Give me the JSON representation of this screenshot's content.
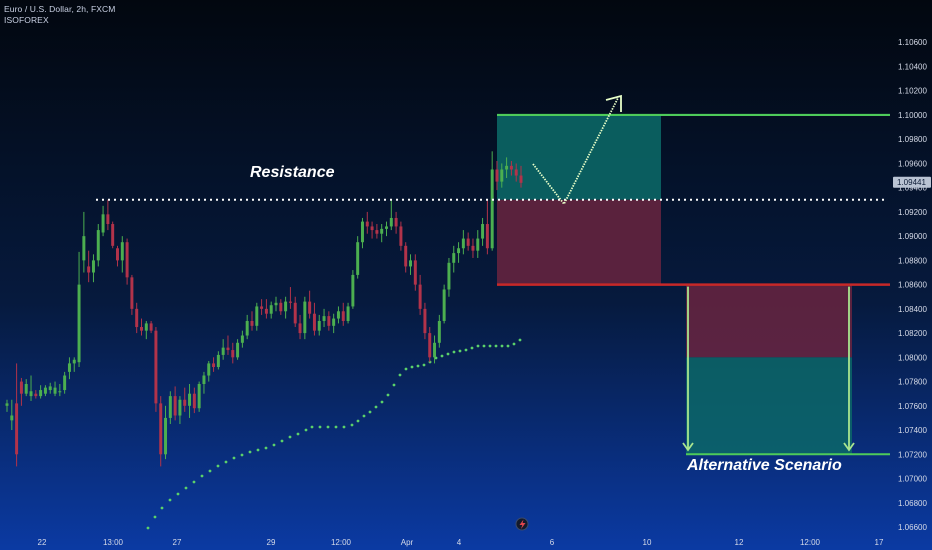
{
  "header": {
    "title": "Euro / U.S. Dollar, 2h, FXCM",
    "source": "ISOFOREX"
  },
  "chart_data": {
    "type": "candlestick",
    "symbol": "EURUSD",
    "timeframe": "2h",
    "ylim": [
      1.066,
      1.108
    ],
    "yticks": [
      "1.10600",
      "1.10400",
      "1.10200",
      "1.10000",
      "1.09800",
      "1.09600",
      "1.09400",
      "1.09200",
      "1.09000",
      "1.08800",
      "1.08600",
      "1.08400",
      "1.08200",
      "1.08000",
      "1.07800",
      "1.07600",
      "1.07400",
      "1.07200",
      "1.07000",
      "1.06800",
      "1.06600"
    ],
    "xticks": [
      "22",
      "13:00",
      "27",
      "29",
      "12:00",
      "Apr",
      "4",
      "6",
      "10",
      "12",
      "12:00",
      "17"
    ],
    "current_price": "1.09441",
    "resistance": {
      "label": "Resistance",
      "price": 1.093
    },
    "colors": {
      "up": "#4caf50",
      "down": "#b2334a",
      "target_line": "#4ecb5a",
      "stop_line": "#c62828",
      "profit_zone": "#0c6b68",
      "loss_zone": "#6a2440",
      "dots": "#5bd16a",
      "arrow": "#e8ffc8"
    },
    "candles": [
      [
        1.076,
        1.0765,
        1.0755,
        1.0762
      ],
      [
        1.0748,
        1.0765,
        1.074,
        1.0752
      ],
      [
        1.0762,
        1.0795,
        1.071,
        1.072
      ],
      [
        1.078,
        1.0783,
        1.076,
        1.077
      ],
      [
        1.077,
        1.0782,
        1.0768,
        1.0778
      ],
      [
        1.0768,
        1.0785,
        1.0764,
        1.0772
      ],
      [
        1.077,
        1.0773,
        1.0766,
        1.0768
      ],
      [
        1.0768,
        1.0777,
        1.0766,
        1.0773
      ],
      [
        1.077,
        1.0777,
        1.0768,
        1.0775
      ],
      [
        1.0773,
        1.0779,
        1.077,
        1.0776
      ],
      [
        1.077,
        1.078,
        1.0768,
        1.0775
      ],
      [
        1.0772,
        1.0778,
        1.0768,
        1.0772
      ],
      [
        1.0773,
        1.0788,
        1.077,
        1.0785
      ],
      [
        1.0788,
        1.08,
        1.0782,
        1.0795
      ],
      [
        1.0795,
        1.08,
        1.0788,
        1.0798
      ],
      [
        1.0796,
        1.0887,
        1.0792,
        1.086
      ],
      [
        1.088,
        1.092,
        1.087,
        1.09
      ],
      [
        1.0875,
        1.0888,
        1.0862,
        1.087
      ],
      [
        1.087,
        1.0885,
        1.0862,
        1.088
      ],
      [
        1.088,
        1.091,
        1.0875,
        1.0905
      ],
      [
        1.0903,
        1.0925,
        1.09,
        1.0918
      ],
      [
        1.0918,
        1.093,
        1.0905,
        1.091
      ],
      [
        1.091,
        1.0912,
        1.089,
        1.0892
      ],
      [
        1.089,
        1.0892,
        1.0875,
        1.088
      ],
      [
        1.088,
        1.09,
        1.087,
        1.0895
      ],
      [
        1.0895,
        1.0898,
        1.086,
        1.0866
      ],
      [
        1.0866,
        1.0868,
        1.0835,
        1.084
      ],
      [
        1.084,
        1.0845,
        1.082,
        1.0825
      ],
      [
        1.0825,
        1.0832,
        1.0818,
        1.0822
      ],
      [
        1.0822,
        1.083,
        1.0815,
        1.0828
      ],
      [
        1.0828,
        1.083,
        1.082,
        1.0822
      ],
      [
        1.0822,
        1.0825,
        1.0755,
        1.0762
      ],
      [
        1.0762,
        1.0768,
        1.071,
        1.072
      ],
      [
        1.072,
        1.076,
        1.0716,
        1.075
      ],
      [
        1.075,
        1.0772,
        1.0745,
        1.0768
      ],
      [
        1.0768,
        1.0776,
        1.0748,
        1.0752
      ],
      [
        1.0752,
        1.0768,
        1.0745,
        1.0765
      ],
      [
        1.0765,
        1.0775,
        1.0755,
        1.076
      ],
      [
        1.076,
        1.0778,
        1.075,
        1.077
      ],
      [
        1.077,
        1.0775,
        1.0754,
        1.0758
      ],
      [
        1.0758,
        1.078,
        1.0755,
        1.0778
      ],
      [
        1.0778,
        1.0788,
        1.077,
        1.0785
      ],
      [
        1.0785,
        1.0797,
        1.078,
        1.0795
      ],
      [
        1.0795,
        1.08,
        1.0788,
        1.0792
      ],
      [
        1.0792,
        1.0805,
        1.079,
        1.0802
      ],
      [
        1.0802,
        1.0815,
        1.0798,
        1.0808
      ],
      [
        1.0808,
        1.0818,
        1.0802,
        1.0806
      ],
      [
        1.0806,
        1.0812,
        1.0795,
        1.08
      ],
      [
        1.08,
        1.0815,
        1.0798,
        1.0812
      ],
      [
        1.0812,
        1.0822,
        1.0808,
        1.0818
      ],
      [
        1.0818,
        1.0835,
        1.0815,
        1.083
      ],
      [
        1.083,
        1.0838,
        1.0822,
        1.0826
      ],
      [
        1.0826,
        1.0845,
        1.0822,
        1.0842
      ],
      [
        1.0842,
        1.0848,
        1.0835,
        1.084
      ],
      [
        1.084,
        1.0848,
        1.0832,
        1.0836
      ],
      [
        1.0836,
        1.0846,
        1.0832,
        1.0843
      ],
      [
        1.0843,
        1.085,
        1.0838,
        1.0845
      ],
      [
        1.0845,
        1.0848,
        1.0835,
        1.0838
      ],
      [
        1.0838,
        1.085,
        1.0832,
        1.0846
      ],
      [
        1.0846,
        1.0858,
        1.084,
        1.0845
      ],
      [
        1.0845,
        1.085,
        1.0825,
        1.0828
      ],
      [
        1.0828,
        1.0835,
        1.0815,
        1.082
      ],
      [
        1.082,
        1.085,
        1.0815,
        1.0846
      ],
      [
        1.0846,
        1.0855,
        1.0832,
        1.0836
      ],
      [
        1.0836,
        1.0845,
        1.0818,
        1.0822
      ],
      [
        1.0822,
        1.0835,
        1.0818,
        1.083
      ],
      [
        1.083,
        1.084,
        1.0825,
        1.0834
      ],
      [
        1.0834,
        1.0838,
        1.0822,
        1.0826
      ],
      [
        1.0826,
        1.0836,
        1.082,
        1.0832
      ],
      [
        1.0832,
        1.0842,
        1.0828,
        1.0838
      ],
      [
        1.0838,
        1.0845,
        1.0826,
        1.083
      ],
      [
        1.083,
        1.0845,
        1.0828,
        1.0842
      ],
      [
        1.0842,
        1.0872,
        1.084,
        1.0868
      ],
      [
        1.0868,
        1.09,
        1.0865,
        1.0895
      ],
      [
        1.0895,
        1.0915,
        1.089,
        1.0912
      ],
      [
        1.0912,
        1.092,
        1.0902,
        1.0908
      ],
      [
        1.0908,
        1.0912,
        1.0898,
        1.0905
      ],
      [
        1.0905,
        1.091,
        1.0898,
        1.0902
      ],
      [
        1.0902,
        1.091,
        1.0895,
        1.0906
      ],
      [
        1.0906,
        1.0912,
        1.09,
        1.0908
      ],
      [
        1.0908,
        1.093,
        1.0905,
        1.0915
      ],
      [
        1.0915,
        1.092,
        1.0902,
        1.0908
      ],
      [
        1.0908,
        1.0912,
        1.0888,
        1.0892
      ],
      [
        1.0892,
        1.0895,
        1.087,
        1.0875
      ],
      [
        1.0875,
        1.0885,
        1.0868,
        1.088
      ],
      [
        1.088,
        1.0885,
        1.0855,
        1.086
      ],
      [
        1.086,
        1.0868,
        1.0835,
        1.084
      ],
      [
        1.084,
        1.0845,
        1.0815,
        1.082
      ],
      [
        1.082,
        1.0825,
        1.0796,
        1.08
      ],
      [
        1.08,
        1.0818,
        1.0795,
        1.0812
      ],
      [
        1.0812,
        1.0835,
        1.0808,
        1.083
      ],
      [
        1.083,
        1.086,
        1.0828,
        1.0856
      ],
      [
        1.0856,
        1.0882,
        1.085,
        1.0878
      ],
      [
        1.0878,
        1.0892,
        1.087,
        1.0886
      ],
      [
        1.0886,
        1.0895,
        1.0878,
        1.089
      ],
      [
        1.089,
        1.0905,
        1.0885,
        1.0898
      ],
      [
        1.0898,
        1.0903,
        1.0888,
        1.0892
      ],
      [
        1.0892,
        1.0898,
        1.0882,
        1.0888
      ],
      [
        1.0888,
        1.0905,
        1.0882,
        1.0898
      ],
      [
        1.0898,
        1.0915,
        1.0892,
        1.091
      ],
      [
        1.091,
        1.093,
        1.0885,
        1.089
      ],
      [
        1.089,
        1.097,
        1.0888,
        1.0955
      ],
      [
        1.0955,
        1.0962,
        1.0938,
        1.0945
      ],
      [
        1.0945,
        1.096,
        1.094,
        1.0955
      ],
      [
        1.0955,
        1.0965,
        1.0948,
        1.0958
      ],
      [
        1.0958,
        1.0962,
        1.095,
        1.0955
      ],
      [
        1.0955,
        1.096,
        1.0945,
        1.095
      ],
      [
        1.095,
        1.0958,
        1.094,
        1.0944
      ]
    ],
    "psar": [
      [
        148,
        528
      ],
      [
        155,
        517
      ],
      [
        162,
        508
      ],
      [
        170,
        500
      ],
      [
        178,
        494
      ],
      [
        186,
        488
      ],
      [
        194,
        482
      ],
      [
        202,
        476
      ],
      [
        210,
        471
      ],
      [
        218,
        466
      ],
      [
        226,
        462
      ],
      [
        234,
        458
      ],
      [
        242,
        455
      ],
      [
        250,
        452
      ],
      [
        258,
        450
      ],
      [
        266,
        448
      ],
      [
        274,
        445
      ],
      [
        282,
        441
      ],
      [
        290,
        437
      ],
      [
        298,
        434
      ],
      [
        306,
        430
      ],
      [
        312,
        427
      ],
      [
        320,
        427
      ],
      [
        328,
        427
      ],
      [
        336,
        427
      ],
      [
        344,
        427
      ],
      [
        352,
        425
      ],
      [
        358,
        421
      ],
      [
        364,
        416
      ],
      [
        370,
        412
      ],
      [
        376,
        407
      ],
      [
        382,
        402
      ],
      [
        388,
        395
      ],
      [
        394,
        385
      ],
      [
        400,
        375
      ],
      [
        406,
        369
      ],
      [
        412,
        367
      ],
      [
        418,
        366
      ],
      [
        424,
        365
      ],
      [
        430,
        362
      ],
      [
        436,
        358
      ],
      [
        442,
        356
      ],
      [
        448,
        354
      ],
      [
        454,
        352
      ],
      [
        460,
        351
      ],
      [
        466,
        350
      ],
      [
        472,
        348
      ],
      [
        478,
        346
      ],
      [
        484,
        346
      ],
      [
        490,
        346
      ],
      [
        496,
        346
      ],
      [
        502,
        346
      ],
      [
        508,
        346
      ],
      [
        514,
        344
      ],
      [
        520,
        340
      ]
    ],
    "plan": {
      "target_price": 1.1,
      "entry_price": 1.093,
      "stop_price": 1.086,
      "alt_entry_price": 1.086,
      "alt_mid_price": 1.08,
      "alt_target_price": 1.072,
      "alt_label": "Alternative Scenario"
    }
  }
}
